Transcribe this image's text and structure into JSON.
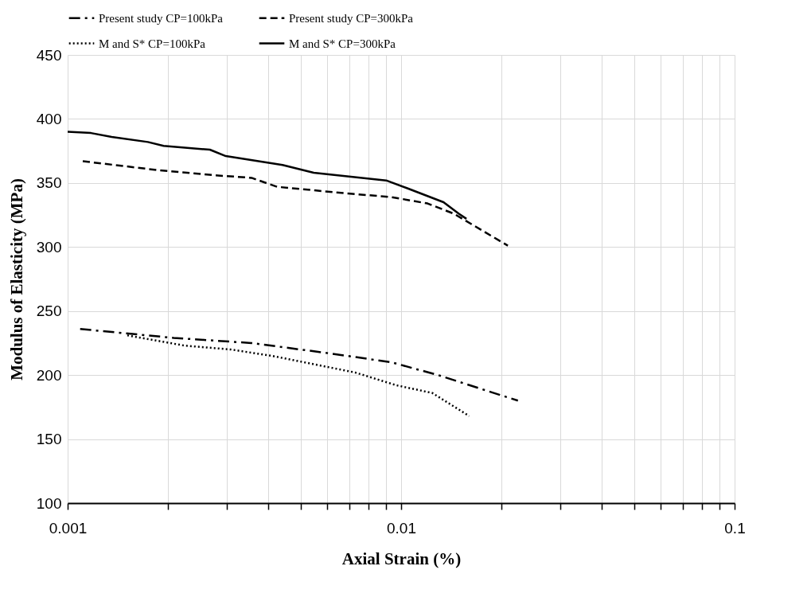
{
  "chart_data": {
    "type": "line",
    "xlabel": "Axial Strain (%)",
    "ylabel": "Modulus of Elasticity (MPa)",
    "log": "x",
    "grid": true,
    "legend": "top",
    "xlim": [
      0.001,
      0.1
    ],
    "ylim": [
      100,
      450
    ],
    "xticks": [
      0.001,
      {
        "value": 0.002,
        "label": null
      },
      {
        "value": 0.003,
        "label": null
      },
      {
        "value": 0.004,
        "label": null
      },
      {
        "value": 0.005,
        "label": null
      },
      {
        "value": 0.006,
        "label": null
      },
      {
        "value": 0.007,
        "label": null
      },
      {
        "value": 0.008,
        "label": null
      },
      {
        "value": 0.009,
        "label": null
      },
      0.01,
      {
        "value": 0.02,
        "label": null
      },
      {
        "value": 0.03,
        "label": null
      },
      {
        "value": 0.04,
        "label": null
      },
      {
        "value": 0.05,
        "label": null
      },
      {
        "value": 0.06,
        "label": null
      },
      {
        "value": 0.07,
        "label": null
      },
      {
        "value": 0.08,
        "label": null
      },
      {
        "value": 0.09,
        "label": null
      },
      0.1
    ],
    "yticks": [
      100,
      150,
      200,
      250,
      300,
      350,
      400,
      450
    ],
    "series": [
      {
        "name": "Present study CP=100kPa",
        "color": "#000000",
        "line_style": "dashdot",
        "x": [
          0.00109,
          0.00208,
          0.00356,
          0.00608,
          0.00934,
          0.0129,
          0.0224
        ],
        "values": [
          236,
          229,
          225,
          217,
          210,
          200,
          180
        ]
      },
      {
        "name": "Present study CP=300kPa",
        "color": "#000000",
        "line_style": "dashed",
        "x": [
          0.00111,
          0.00187,
          0.00277,
          0.00356,
          0.00425,
          0.00678,
          0.00934,
          0.012,
          0.0144,
          0.0209
        ],
        "values": [
          367,
          360,
          356,
          354,
          347,
          342,
          339,
          334,
          326,
          301
        ]
      },
      {
        "name": "M and S* CP=100kPa",
        "color": "#000000",
        "line_style": "dotted",
        "x": [
          0.00151,
          0.00224,
          0.00308,
          0.0041,
          0.00728,
          0.00968,
          0.0124,
          0.016
        ],
        "values": [
          231,
          223,
          220,
          215,
          202,
          192,
          186,
          168
        ]
      },
      {
        "name": "M and S*  CP=300kPa",
        "color": "#000000",
        "line_style": "solid",
        "x": [
          0.001,
          0.001175,
          0.001355,
          0.00174,
          0.00194,
          0.00267,
          0.00298,
          0.00441,
          0.00547,
          0.00902,
          0.0104,
          0.0134,
          0.0149,
          0.0157
        ],
        "values": [
          390,
          389,
          386,
          382,
          379,
          376,
          371,
          364,
          358,
          352,
          346,
          335,
          326,
          322
        ]
      }
    ]
  }
}
